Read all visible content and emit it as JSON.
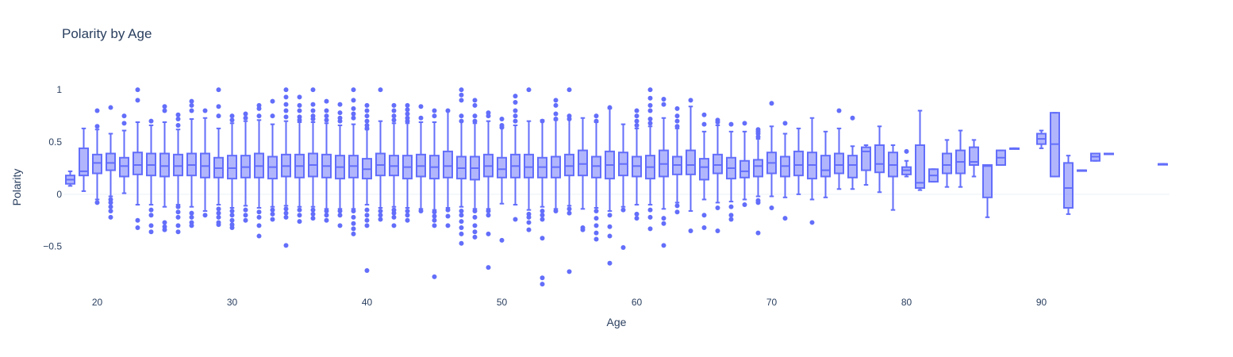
{
  "chart_data": {
    "type": "box",
    "title": "Polarity by Age",
    "xlabel": "Age",
    "ylabel": "Polarity",
    "xlim": [
      17.5,
      99.5
    ],
    "ylim": [
      -0.95,
      1.1
    ],
    "x_ticks": [
      20,
      30,
      40,
      50,
      60,
      70,
      80,
      90
    ],
    "y_ticks": [
      -0.5,
      0,
      0.5,
      1
    ],
    "y_tick_labels": [
      "−0.5",
      "0",
      "0.5",
      "1"
    ],
    "grid": false,
    "color": "#636efa",
    "boxes": [
      {
        "x": 18,
        "q1": 0.1,
        "median": 0.14,
        "q3": 0.18,
        "lower": 0.08,
        "upper": 0.22,
        "outliers": []
      },
      {
        "x": 19,
        "q1": 0.18,
        "median": 0.22,
        "q3": 0.44,
        "lower": 0.03,
        "upper": 0.63,
        "outliers": []
      },
      {
        "x": 20,
        "q1": 0.2,
        "median": 0.3,
        "q3": 0.38,
        "lower": -0.05,
        "upper": 0.62,
        "outliers": [
          0.8,
          0.65,
          -0.08
        ]
      },
      {
        "x": 21,
        "q1": 0.23,
        "median": 0.3,
        "q3": 0.39,
        "lower": -0.02,
        "upper": 0.58,
        "outliers": [
          0.83,
          -0.05,
          -0.08,
          -0.12,
          -0.16,
          -0.22
        ]
      },
      {
        "x": 22,
        "q1": 0.17,
        "median": 0.27,
        "q3": 0.35,
        "lower": 0.01,
        "upper": 0.61,
        "outliers": [
          0.75,
          0.68
        ]
      },
      {
        "x": 23,
        "q1": 0.19,
        "median": 0.28,
        "q3": 0.4,
        "lower": -0.1,
        "upper": 0.69,
        "outliers": [
          1.0,
          0.9,
          -0.25,
          -0.32
        ]
      },
      {
        "x": 24,
        "q1": 0.18,
        "median": 0.28,
        "q3": 0.39,
        "lower": -0.1,
        "upper": 0.66,
        "outliers": [
          0.7,
          -0.15,
          -0.2,
          -0.3,
          -0.36
        ]
      },
      {
        "x": 25,
        "q1": 0.17,
        "median": 0.27,
        "q3": 0.39,
        "lower": -0.12,
        "upper": 0.69,
        "outliers": [
          0.84,
          0.8,
          -0.27,
          -0.31,
          -0.34
        ]
      },
      {
        "x": 26,
        "q1": 0.18,
        "median": 0.27,
        "q3": 0.38,
        "lower": -0.1,
        "upper": 0.62,
        "outliers": [
          0.76,
          0.72,
          0.66,
          -0.12,
          -0.17,
          -0.22,
          -0.3,
          -0.36
        ]
      },
      {
        "x": 27,
        "q1": 0.18,
        "median": 0.28,
        "q3": 0.39,
        "lower": -0.12,
        "upper": 0.72,
        "outliers": [
          0.89,
          0.85,
          0.8,
          -0.18,
          -0.22,
          -0.27,
          -0.3
        ]
      },
      {
        "x": 28,
        "q1": 0.16,
        "median": 0.27,
        "q3": 0.39,
        "lower": -0.16,
        "upper": 0.73,
        "outliers": [
          0.8,
          -0.2
        ]
      },
      {
        "x": 29,
        "q1": 0.16,
        "median": 0.25,
        "q3": 0.35,
        "lower": -0.1,
        "upper": 0.63,
        "outliers": [
          1.0,
          0.84,
          0.75,
          -0.14,
          -0.18,
          -0.22,
          -0.27,
          -0.29
        ]
      },
      {
        "x": 30,
        "q1": 0.15,
        "median": 0.25,
        "q3": 0.37,
        "lower": -0.13,
        "upper": 0.68,
        "outliers": [
          0.75,
          0.71,
          -0.16,
          -0.2,
          -0.25,
          -0.29,
          -0.32
        ]
      },
      {
        "x": 31,
        "q1": 0.16,
        "median": 0.26,
        "q3": 0.37,
        "lower": -0.11,
        "upper": 0.7,
        "outliers": [
          0.77,
          0.73,
          -0.15,
          -0.2,
          -0.25
        ]
      },
      {
        "x": 32,
        "q1": 0.16,
        "median": 0.27,
        "q3": 0.39,
        "lower": -0.13,
        "upper": 0.71,
        "outliers": [
          0.85,
          0.82,
          0.75,
          -0.17,
          -0.22,
          -0.3,
          -0.4
        ]
      },
      {
        "x": 33,
        "q1": 0.15,
        "median": 0.26,
        "q3": 0.36,
        "lower": -0.12,
        "upper": 0.67,
        "outliers": [
          0.89,
          0.75,
          -0.15,
          -0.19,
          -0.24
        ]
      },
      {
        "x": 34,
        "q1": 0.17,
        "median": 0.27,
        "q3": 0.38,
        "lower": -0.11,
        "upper": 0.7,
        "outliers": [
          1.0,
          0.93,
          0.86,
          0.8,
          0.74,
          -0.14,
          -0.18,
          -0.22,
          -0.49
        ]
      },
      {
        "x": 35,
        "q1": 0.16,
        "median": 0.27,
        "q3": 0.38,
        "lower": -0.12,
        "upper": 0.69,
        "outliers": [
          0.93,
          0.85,
          0.8,
          0.74,
          0.71,
          -0.15,
          -0.2,
          -0.26
        ]
      },
      {
        "x": 36,
        "q1": 0.17,
        "median": 0.28,
        "q3": 0.39,
        "lower": -0.12,
        "upper": 0.69,
        "outliers": [
          1.0,
          0.86,
          0.8,
          0.75,
          0.72,
          -0.15,
          -0.19,
          -0.23
        ]
      },
      {
        "x": 37,
        "q1": 0.16,
        "median": 0.27,
        "q3": 0.38,
        "lower": -0.14,
        "upper": 0.68,
        "outliers": [
          0.89,
          0.8,
          0.75,
          0.71,
          -0.16,
          -0.2,
          -0.25
        ]
      },
      {
        "x": 38,
        "q1": 0.15,
        "median": 0.26,
        "q3": 0.37,
        "lower": -0.14,
        "upper": 0.66,
        "outliers": [
          0.86,
          0.78,
          0.73,
          0.7,
          -0.16,
          -0.2,
          -0.3
        ]
      },
      {
        "x": 39,
        "q1": 0.16,
        "median": 0.27,
        "q3": 0.37,
        "lower": -0.14,
        "upper": 0.67,
        "outliers": [
          1.0,
          0.9,
          0.82,
          0.77,
          0.73,
          -0.16,
          -0.22,
          -0.28,
          -0.33,
          -0.38
        ]
      },
      {
        "x": 40,
        "q1": 0.15,
        "median": 0.24,
        "q3": 0.34,
        "lower": -0.1,
        "upper": 0.62,
        "outliers": [
          0.85,
          0.8,
          0.75,
          0.7,
          0.66,
          0.63,
          -0.15,
          -0.2,
          -0.25,
          -0.3,
          -0.73
        ]
      },
      {
        "x": 41,
        "q1": 0.18,
        "median": 0.28,
        "q3": 0.39,
        "lower": -0.13,
        "upper": 0.7,
        "outliers": [
          1.0,
          -0.16,
          -0.2,
          -0.24
        ]
      },
      {
        "x": 42,
        "q1": 0.18,
        "median": 0.27,
        "q3": 0.37,
        "lower": -0.12,
        "upper": 0.68,
        "outliers": [
          0.85,
          0.8,
          0.75,
          0.71,
          -0.15,
          -0.18,
          -0.22,
          -0.3
        ]
      },
      {
        "x": 43,
        "q1": 0.15,
        "median": 0.26,
        "q3": 0.37,
        "lower": -0.13,
        "upper": 0.68,
        "outliers": [
          0.85,
          0.81,
          0.77,
          0.73,
          0.7,
          -0.16,
          -0.2,
          -0.25
        ]
      },
      {
        "x": 44,
        "q1": 0.17,
        "median": 0.27,
        "q3": 0.38,
        "lower": -0.14,
        "upper": 0.69,
        "outliers": [
          0.84,
          0.73,
          -0.16
        ]
      },
      {
        "x": 45,
        "q1": 0.15,
        "median": 0.26,
        "q3": 0.37,
        "lower": -0.15,
        "upper": 0.69,
        "outliers": [
          0.8,
          0.75,
          -0.17,
          -0.21,
          -0.25,
          -0.3,
          -0.79
        ]
      },
      {
        "x": 46,
        "q1": 0.16,
        "median": 0.27,
        "q3": 0.41,
        "lower": -0.13,
        "upper": 0.8,
        "outliers": [
          0.8,
          -0.15,
          -0.21,
          -0.3
        ]
      },
      {
        "x": 47,
        "q1": 0.15,
        "median": 0.25,
        "q3": 0.36,
        "lower": -0.12,
        "upper": 0.7,
        "outliers": [
          1.0,
          0.95,
          0.9,
          0.75,
          0.7,
          -0.16,
          -0.2,
          -0.26,
          -0.32,
          -0.38,
          -0.47
        ]
      },
      {
        "x": 48,
        "q1": 0.14,
        "median": 0.25,
        "q3": 0.36,
        "lower": -0.14,
        "upper": 0.68,
        "outliers": [
          0.9,
          0.85,
          0.75,
          0.7,
          -0.16,
          -0.22,
          -0.3,
          -0.36,
          -0.41
        ]
      },
      {
        "x": 49,
        "q1": 0.17,
        "median": 0.27,
        "q3": 0.38,
        "lower": -0.14,
        "upper": 0.7,
        "outliers": [
          0.78,
          0.75,
          -0.16,
          -0.2,
          -0.38,
          -0.7
        ]
      },
      {
        "x": 50,
        "q1": 0.16,
        "median": 0.24,
        "q3": 0.35,
        "lower": -0.09,
        "upper": 0.64,
        "outliers": [
          0.72,
          0.66,
          0.64,
          -0.44
        ]
      },
      {
        "x": 51,
        "q1": 0.16,
        "median": 0.27,
        "q3": 0.38,
        "lower": -0.1,
        "upper": 0.66,
        "outliers": [
          0.94,
          0.88,
          0.8,
          0.75,
          0.7,
          -0.24
        ]
      },
      {
        "x": 52,
        "q1": 0.16,
        "median": 0.26,
        "q3": 0.38,
        "lower": -0.15,
        "upper": 0.7,
        "outliers": [
          1.0,
          -0.19,
          -0.22,
          -0.27,
          -0.34
        ]
      },
      {
        "x": 53,
        "q1": 0.16,
        "median": 0.26,
        "q3": 0.35,
        "lower": -0.12,
        "upper": 0.71,
        "outliers": [
          0.7,
          -0.16,
          -0.2,
          -0.24,
          -0.42,
          -0.8,
          -0.86
        ]
      },
      {
        "x": 54,
        "q1": 0.16,
        "median": 0.26,
        "q3": 0.36,
        "lower": -0.14,
        "upper": 0.71,
        "outliers": [
          0.9,
          0.85,
          0.77,
          0.72,
          -0.16
        ]
      },
      {
        "x": 55,
        "q1": 0.18,
        "median": 0.27,
        "q3": 0.38,
        "lower": -0.11,
        "upper": 0.72,
        "outliers": [
          1.0,
          0.75,
          0.72,
          -0.14,
          -0.18,
          -0.74
        ]
      },
      {
        "x": 56,
        "q1": 0.18,
        "median": 0.29,
        "q3": 0.42,
        "lower": -0.14,
        "upper": 0.73,
        "outliers": [
          -0.32,
          -0.34
        ]
      },
      {
        "x": 57,
        "q1": 0.16,
        "median": 0.27,
        "q3": 0.36,
        "lower": -0.13,
        "upper": 0.69,
        "outliers": [
          0.75,
          0.7,
          -0.16,
          -0.23,
          -0.3,
          -0.37,
          -0.43
        ]
      },
      {
        "x": 58,
        "q1": 0.15,
        "median": 0.28,
        "q3": 0.41,
        "lower": -0.16,
        "upper": 0.82,
        "outliers": [
          0.83,
          -0.2,
          -0.31,
          -0.4,
          -0.66
        ]
      },
      {
        "x": 59,
        "q1": 0.18,
        "median": 0.29,
        "q3": 0.4,
        "lower": -0.12,
        "upper": 0.67,
        "outliers": [
          -0.15,
          -0.51
        ]
      },
      {
        "x": 60,
        "q1": 0.17,
        "median": 0.27,
        "q3": 0.36,
        "lower": -0.1,
        "upper": 0.63,
        "outliers": [
          0.8,
          0.75,
          0.7,
          0.66,
          -0.19,
          -0.23
        ]
      },
      {
        "x": 61,
        "q1": 0.15,
        "median": 0.26,
        "q3": 0.37,
        "lower": -0.1,
        "upper": 0.65,
        "outliers": [
          1.0,
          0.92,
          0.85,
          0.8,
          0.72,
          0.68,
          -0.15,
          -0.22,
          -0.33
        ]
      },
      {
        "x": 62,
        "q1": 0.17,
        "median": 0.29,
        "q3": 0.42,
        "lower": -0.14,
        "upper": 0.73,
        "outliers": [
          0.91,
          0.86,
          -0.23,
          -0.28,
          -0.49
        ]
      },
      {
        "x": 63,
        "q1": 0.19,
        "median": 0.28,
        "q3": 0.36,
        "lower": -0.08,
        "upper": 0.63,
        "outliers": [
          0.82,
          0.75,
          0.7,
          0.65,
          -0.11,
          -0.17
        ]
      },
      {
        "x": 64,
        "q1": 0.19,
        "median": 0.28,
        "q3": 0.42,
        "lower": -0.16,
        "upper": 0.84,
        "outliers": [
          0.9,
          -0.35
        ]
      },
      {
        "x": 65,
        "q1": 0.14,
        "median": 0.26,
        "q3": 0.34,
        "lower": -0.05,
        "upper": 0.6,
        "outliers": [
          0.76,
          0.67,
          -0.2,
          -0.32
        ]
      },
      {
        "x": 66,
        "q1": 0.2,
        "median": 0.28,
        "q3": 0.38,
        "lower": -0.08,
        "upper": 0.66,
        "outliers": [
          0.71,
          0.69,
          -0.13,
          -0.35
        ]
      },
      {
        "x": 67,
        "q1": 0.15,
        "median": 0.25,
        "q3": 0.35,
        "lower": -0.07,
        "upper": 0.6,
        "outliers": [
          0.67,
          -0.12,
          -0.2,
          -0.24
        ]
      },
      {
        "x": 68,
        "q1": 0.16,
        "median": 0.22,
        "q3": 0.32,
        "lower": -0.05,
        "upper": 0.6,
        "outliers": [
          0.68,
          -0.1
        ]
      },
      {
        "x": 69,
        "q1": 0.17,
        "median": 0.27,
        "q3": 0.33,
        "lower": -0.02,
        "upper": 0.53,
        "outliers": [
          0.62,
          0.6,
          0.58,
          0.55,
          -0.06,
          -0.08,
          -0.37
        ]
      },
      {
        "x": 70,
        "q1": 0.2,
        "median": 0.3,
        "q3": 0.4,
        "lower": -0.02,
        "upper": 0.65,
        "outliers": [
          0.87,
          -0.13
        ]
      },
      {
        "x": 71,
        "q1": 0.17,
        "median": 0.27,
        "q3": 0.36,
        "lower": -0.03,
        "upper": 0.58,
        "outliers": [
          0.68,
          -0.23
        ]
      },
      {
        "x": 72,
        "q1": 0.18,
        "median": 0.28,
        "q3": 0.41,
        "lower": 0.0,
        "upper": 0.63,
        "outliers": []
      },
      {
        "x": 73,
        "q1": 0.15,
        "median": 0.28,
        "q3": 0.4,
        "lower": -0.05,
        "upper": 0.73,
        "outliers": [
          -0.27
        ]
      },
      {
        "x": 74,
        "q1": 0.17,
        "median": 0.23,
        "q3": 0.37,
        "lower": -0.03,
        "upper": 0.6,
        "outliers": []
      },
      {
        "x": 75,
        "q1": 0.2,
        "median": 0.28,
        "q3": 0.39,
        "lower": 0.05,
        "upper": 0.63,
        "outliers": [
          0.8
        ]
      },
      {
        "x": 76,
        "q1": 0.16,
        "median": 0.28,
        "q3": 0.37,
        "lower": 0.05,
        "upper": 0.46,
        "outliers": [
          0.73
        ]
      },
      {
        "x": 77,
        "q1": 0.23,
        "median": 0.41,
        "q3": 0.45,
        "lower": 0.09,
        "upper": 0.47,
        "outliers": []
      },
      {
        "x": 78,
        "q1": 0.21,
        "median": 0.29,
        "q3": 0.47,
        "lower": 0.02,
        "upper": 0.65,
        "outliers": []
      },
      {
        "x": 79,
        "q1": 0.17,
        "median": 0.28,
        "q3": 0.4,
        "lower": -0.15,
        "upper": 0.47,
        "outliers": []
      },
      {
        "x": 80,
        "q1": 0.19,
        "median": 0.23,
        "q3": 0.26,
        "lower": 0.17,
        "upper": 0.32,
        "outliers": [
          0.41
        ]
      },
      {
        "x": 81,
        "q1": 0.06,
        "median": 0.11,
        "q3": 0.47,
        "lower": 0.04,
        "upper": 0.8,
        "outliers": []
      },
      {
        "x": 82,
        "q1": 0.12,
        "median": 0.18,
        "q3": 0.24,
        "lower": 0.12,
        "upper": 0.24,
        "outliers": []
      },
      {
        "x": 83,
        "q1": 0.2,
        "median": 0.28,
        "q3": 0.39,
        "lower": 0.07,
        "upper": 0.52,
        "outliers": []
      },
      {
        "x": 84,
        "q1": 0.2,
        "median": 0.31,
        "q3": 0.42,
        "lower": 0.07,
        "upper": 0.61,
        "outliers": []
      },
      {
        "x": 85,
        "q1": 0.28,
        "median": 0.31,
        "q3": 0.45,
        "lower": 0.17,
        "upper": 0.52,
        "outliers": []
      },
      {
        "x": 86,
        "q1": -0.03,
        "median": 0.27,
        "q3": 0.28,
        "lower": -0.22,
        "upper": 0.28,
        "outliers": []
      },
      {
        "x": 87,
        "q1": 0.28,
        "median": 0.35,
        "q3": 0.42,
        "lower": 0.28,
        "upper": 0.42,
        "outliers": []
      },
      {
        "x": 88,
        "q1": 0.44,
        "median": 0.44,
        "q3": 0.44,
        "lower": 0.44,
        "upper": 0.44,
        "outliers": []
      },
      {
        "x": 90,
        "q1": 0.48,
        "median": 0.53,
        "q3": 0.58,
        "lower": 0.44,
        "upper": 0.61,
        "outliers": []
      },
      {
        "x": 91,
        "q1": 0.17,
        "median": 0.48,
        "q3": 0.78,
        "lower": 0.17,
        "upper": 0.78,
        "outliers": []
      },
      {
        "x": 92,
        "q1": -0.13,
        "median": 0.06,
        "q3": 0.3,
        "lower": -0.19,
        "upper": 0.37,
        "outliers": []
      },
      {
        "x": 93,
        "q1": 0.23,
        "median": 0.23,
        "q3": 0.23,
        "lower": 0.23,
        "upper": 0.23,
        "outliers": []
      },
      {
        "x": 94,
        "q1": 0.32,
        "median": 0.36,
        "q3": 0.39,
        "lower": 0.32,
        "upper": 0.39,
        "outliers": []
      },
      {
        "x": 95,
        "q1": 0.39,
        "median": 0.39,
        "q3": 0.39,
        "lower": 0.39,
        "upper": 0.39,
        "outliers": []
      },
      {
        "x": 99,
        "q1": 0.29,
        "median": 0.29,
        "q3": 0.29,
        "lower": 0.29,
        "upper": 0.29,
        "outliers": []
      }
    ]
  }
}
